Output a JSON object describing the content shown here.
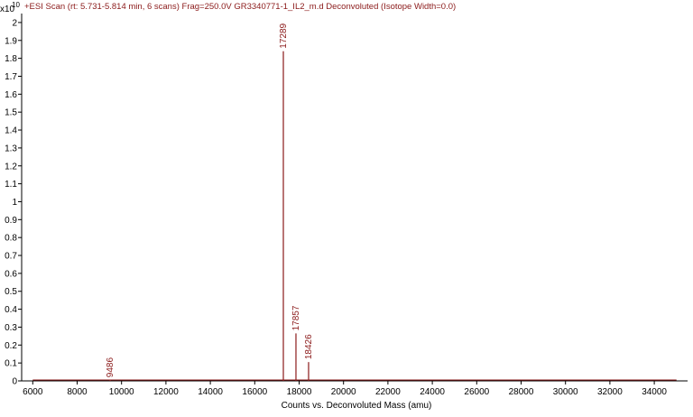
{
  "chart_data": {
    "type": "line",
    "title": "+ESI Scan (rt: 5.731-5.814 min, 6 scans) Frag=250.0V GR3340771-1_IL2_m.d  Deconvoluted (Isotope Width=0.0)",
    "y_scale_base": "x10",
    "y_scale_exponent": "10",
    "xlabel": "Counts vs. Deconvoluted Mass (amu)",
    "ylabel": "",
    "xlim": [
      5500,
      35500
    ],
    "ylim": [
      0,
      2.05
    ],
    "x_ticks": [
      "6000",
      "8000",
      "10000",
      "12000",
      "14000",
      "16000",
      "18000",
      "20000",
      "22000",
      "24000",
      "26000",
      "28000",
      "30000",
      "32000",
      "34000"
    ],
    "y_ticks": [
      "0",
      "0.1",
      "0.2",
      "0.3",
      "0.4",
      "0.5",
      "0.6",
      "0.7",
      "0.8",
      "0.9",
      "1",
      "1.1",
      "1.2",
      "1.3",
      "1.4",
      "1.5",
      "1.6",
      "1.7",
      "1.8",
      "1.9",
      "2"
    ],
    "grid": false,
    "color": "#8b1a1a",
    "baseline": {
      "x_start": 6000,
      "x_end": 35000,
      "y": 0.005
    },
    "peaks": [
      {
        "x": 9486,
        "y": 0.004,
        "label": "9486"
      },
      {
        "x": 17289,
        "y": 1.84,
        "label": "17289"
      },
      {
        "x": 17857,
        "y": 0.265,
        "label": "17857"
      },
      {
        "x": 18426,
        "y": 0.105,
        "label": "18426"
      }
    ]
  }
}
